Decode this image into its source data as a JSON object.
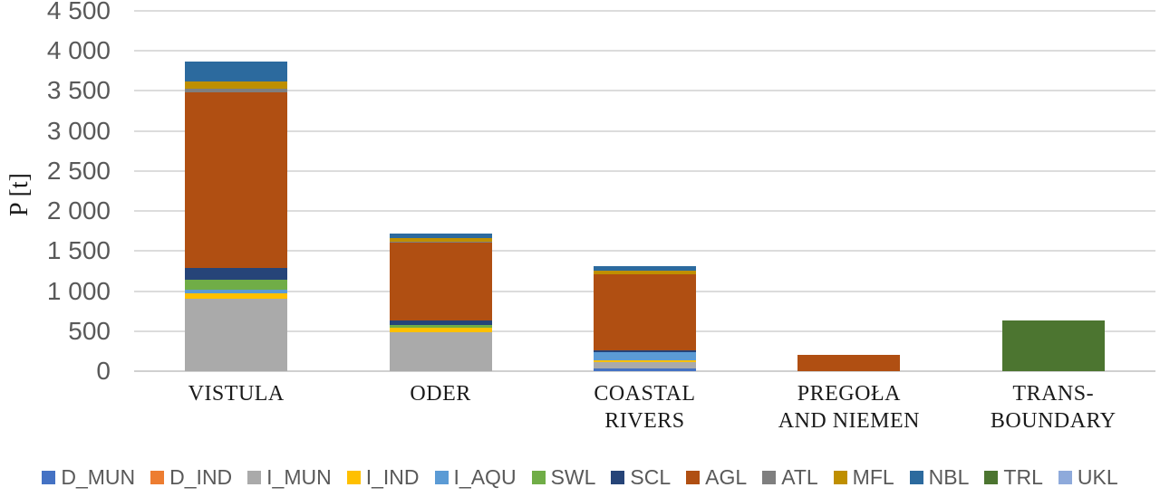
{
  "chart_data": {
    "type": "bar",
    "variant": "stacked-vertical",
    "title": "",
    "ylabel": "P [t]",
    "xlabel": "",
    "ylim": [
      0,
      4500
    ],
    "ytick_step": 500,
    "ytick_labels": [
      "0",
      "500",
      "1 000",
      "1 500",
      "2 000",
      "2 500",
      "3 000",
      "3 500",
      "4 000",
      "4 500"
    ],
    "grid": true,
    "legend_position": "bottom",
    "categories": [
      "VISTULA",
      "ODER",
      "COASTAL RIVERS",
      "PREGOŁA AND NIEMEN",
      "TRANS-BOUNDARY"
    ],
    "category_label_lines": [
      [
        "VISTULA"
      ],
      [
        "ODER"
      ],
      [
        "COASTAL",
        "RIVERS"
      ],
      [
        "PREGOŁA",
        "AND NIEMEN"
      ],
      [
        "TRANS-",
        "BOUNDARY"
      ]
    ],
    "approx_totals": [
      3865,
      1720,
      1310,
      200,
      630
    ],
    "series": [
      {
        "name": "D_MUN",
        "color": "#4472C4",
        "values": [
          0,
          0,
          30,
          0,
          0
        ]
      },
      {
        "name": "D_IND",
        "color": "#ED7D31",
        "values": [
          0,
          0,
          0,
          0,
          0
        ]
      },
      {
        "name": "I_MUN",
        "color": "#AAAAAA",
        "values": [
          900,
          490,
          80,
          0,
          0
        ]
      },
      {
        "name": "I_IND",
        "color": "#FFC000",
        "values": [
          70,
          55,
          25,
          0,
          0
        ]
      },
      {
        "name": "I_AQU",
        "color": "#5B9BD5",
        "values": [
          45,
          0,
          100,
          0,
          0
        ]
      },
      {
        "name": "SWL",
        "color": "#70AD47",
        "values": [
          125,
          35,
          0,
          0,
          0
        ]
      },
      {
        "name": "SCL",
        "color": "#264478",
        "values": [
          150,
          55,
          25,
          0,
          0
        ]
      },
      {
        "name": "AGL",
        "color": "#B04F12",
        "values": [
          2190,
          975,
          950,
          200,
          0
        ]
      },
      {
        "name": "ATL",
        "color": "#7F7F7F",
        "values": [
          45,
          10,
          0,
          0,
          0
        ]
      },
      {
        "name": "MFL",
        "color": "#BF8F00",
        "values": [
          90,
          45,
          45,
          0,
          0
        ]
      },
      {
        "name": "NBL",
        "color": "#2C6A9E",
        "values": [
          250,
          55,
          55,
          0,
          0
        ]
      },
      {
        "name": "TRL",
        "color": "#4C7530",
        "values": [
          0,
          0,
          0,
          0,
          630
        ]
      },
      {
        "name": "UKL",
        "color": "#8EAADB",
        "values": [
          0,
          0,
          0,
          0,
          0
        ]
      }
    ],
    "colors_meta": {
      "gridline": "#DCDCDC",
      "tick_text": "#595959",
      "legend_text": "#595959",
      "axis_title_text": "#1A1A1A"
    }
  }
}
